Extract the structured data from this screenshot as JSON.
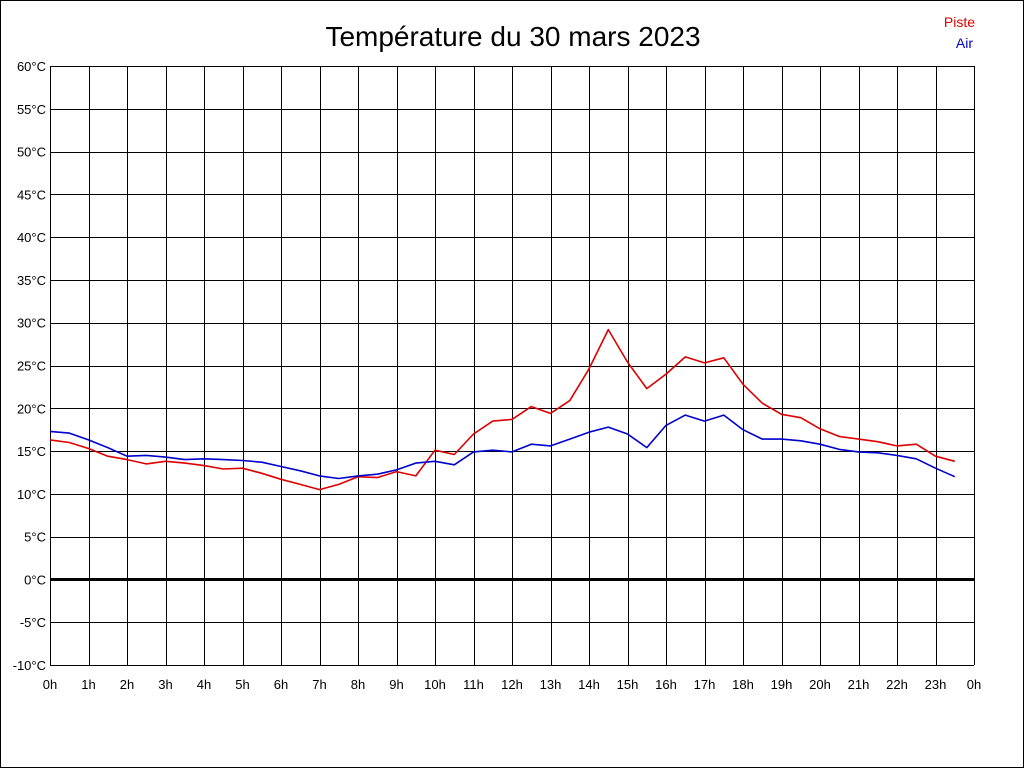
{
  "chart_data": {
    "type": "line",
    "title": "Température du 30 mars 2023",
    "xlabel": "",
    "ylabel": "",
    "ylim": [
      -10,
      60
    ],
    "xlim": [
      0,
      24
    ],
    "grid": true,
    "legend_position": "top-right",
    "x_ticks": [
      "0h",
      "1h",
      "2h",
      "3h",
      "4h",
      "5h",
      "6h",
      "7h",
      "8h",
      "9h",
      "10h",
      "11h",
      "12h",
      "13h",
      "14h",
      "15h",
      "16h",
      "17h",
      "18h",
      "19h",
      "20h",
      "21h",
      "22h",
      "23h",
      "0h"
    ],
    "y_ticks": [
      "60°C",
      "55°C",
      "50°C",
      "45°C",
      "40°C",
      "35°C",
      "30°C",
      "25°C",
      "20°C",
      "15°C",
      "10°C",
      "5°C",
      "0°C",
      "-5°C",
      "-10°C"
    ],
    "x": [
      0,
      0.5,
      1,
      1.5,
      2,
      2.5,
      3,
      3.5,
      4,
      4.5,
      5,
      5.5,
      6,
      6.5,
      7,
      7.5,
      8,
      8.5,
      9,
      9.5,
      10,
      10.5,
      11,
      11.5,
      12,
      12.5,
      13,
      13.5,
      14,
      14.5,
      15,
      15.5,
      16,
      16.5,
      17,
      17.5,
      18,
      18.5,
      19,
      19.5,
      20,
      20.5,
      21,
      21.5,
      22,
      22.5,
      23,
      23.5
    ],
    "series": [
      {
        "name": "Piste",
        "color": "#dd0000",
        "values": [
          16.3,
          16.0,
          15.3,
          14.4,
          14.0,
          13.5,
          13.8,
          13.6,
          13.3,
          12.9,
          13.0,
          12.4,
          11.7,
          11.1,
          10.5,
          11.1,
          12.0,
          11.9,
          12.6,
          12.1,
          15.1,
          14.6,
          17.0,
          18.5,
          18.7,
          20.2,
          19.4,
          20.9,
          24.6,
          29.2,
          25.4,
          22.3,
          24.0,
          26.0,
          25.3,
          25.9,
          22.8,
          20.6,
          19.3,
          18.9,
          17.6,
          16.7,
          16.4,
          16.1,
          15.6,
          15.8,
          14.4,
          13.8
        ]
      },
      {
        "name": "Air",
        "color": "#0000cc",
        "values": [
          17.3,
          17.1,
          16.3,
          15.4,
          14.4,
          14.5,
          14.3,
          14.0,
          14.1,
          14.0,
          13.9,
          13.7,
          13.2,
          12.7,
          12.1,
          11.8,
          12.1,
          12.3,
          12.8,
          13.6,
          13.8,
          13.4,
          14.9,
          15.1,
          14.9,
          15.8,
          15.6,
          16.4,
          17.2,
          17.8,
          17.0,
          15.4,
          18.0,
          19.2,
          18.5,
          19.2,
          17.5,
          16.4,
          16.4,
          16.2,
          15.8,
          15.2,
          14.9,
          14.8,
          14.5,
          14.1,
          13.0,
          12.0
        ]
      }
    ]
  }
}
